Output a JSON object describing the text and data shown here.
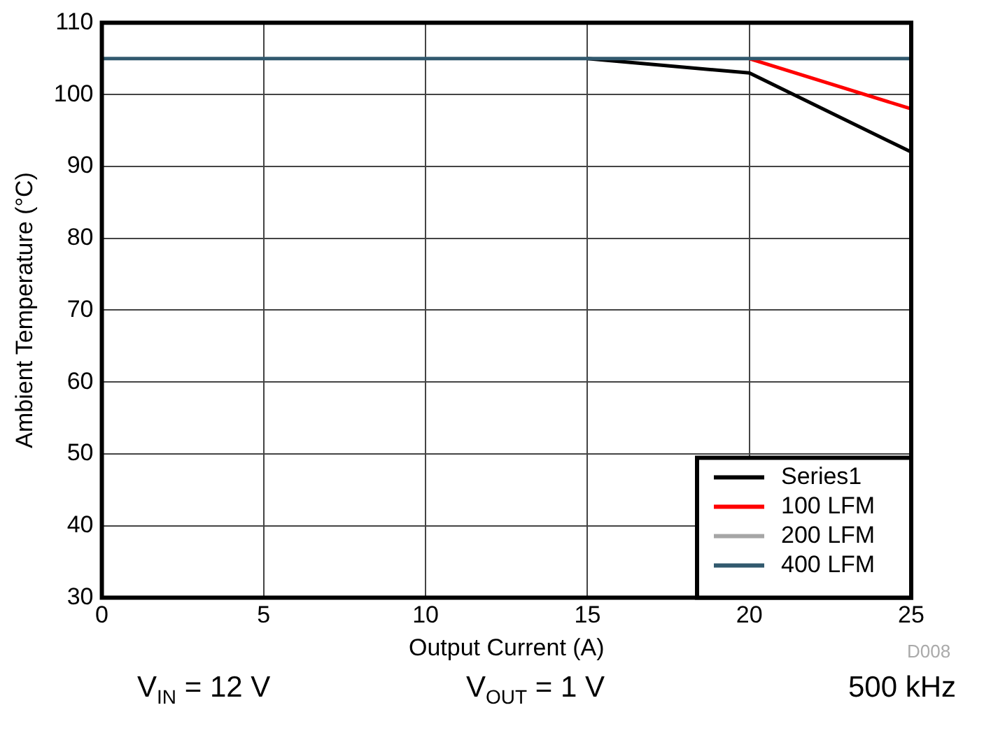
{
  "chart_data": {
    "type": "line",
    "xlabel": "Output Current (A)",
    "ylabel": "Ambient Temperature (°C)",
    "x": [
      0,
      15,
      20,
      25
    ],
    "series": [
      {
        "name": "Series1",
        "color": "#000000",
        "values": [
          null,
          105,
          103,
          92
        ]
      },
      {
        "name": "100 LFM",
        "color": "#ff0000",
        "values": [
          null,
          null,
          105,
          98
        ]
      },
      {
        "name": "200 LFM",
        "color": "#a6a6a6",
        "values": [
          null,
          null,
          null,
          null
        ]
      },
      {
        "name": "400 LFM",
        "color": "#31596e",
        "values": [
          105,
          105,
          105,
          105
        ]
      }
    ],
    "xlim": [
      0,
      25
    ],
    "xticks": [
      0,
      5,
      10,
      15,
      20,
      25
    ],
    "ylim": [
      30,
      110
    ],
    "yticks": [
      30,
      40,
      50,
      60,
      70,
      80,
      90,
      100,
      110
    ],
    "grid": true,
    "legend": "bottom right",
    "marker": "none",
    "line_style": "solid",
    "annotations": [
      "D008",
      "V$_{IN}$ = 12 V",
      "V$_{OUT}$ = 1 V",
      "500 kHz"
    ]
  }
}
